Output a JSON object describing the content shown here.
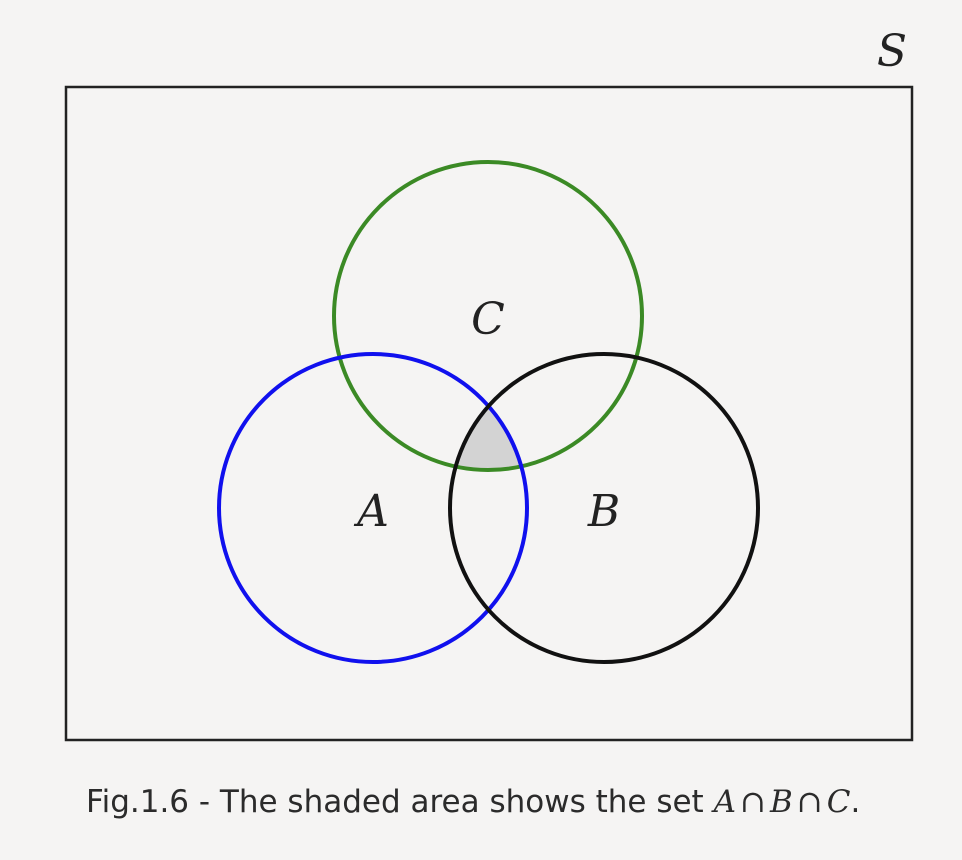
{
  "diagram": {
    "universal_set_label": "S",
    "sets": [
      {
        "id": "A",
        "label": "A",
        "color": "#1010ee"
      },
      {
        "id": "B",
        "label": "B",
        "color": "#111111"
      },
      {
        "id": "C",
        "label": "C",
        "color": "#3b8a25"
      }
    ],
    "shaded_region": "A ∩ B ∩ C",
    "shade_color": "#d3d3d3",
    "frame_color": "#222222"
  },
  "caption": {
    "prefix": "Fig.1.6 - The shaded area shows the set ",
    "set_a": "A",
    "op_1": "∩",
    "set_b": "B",
    "op_2": "∩",
    "set_c": "C",
    "suffix": "."
  }
}
